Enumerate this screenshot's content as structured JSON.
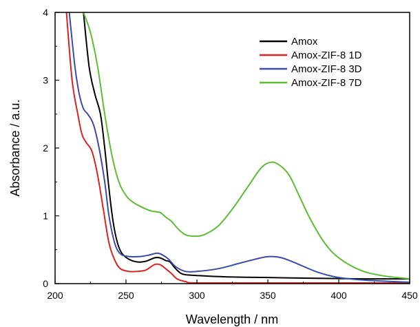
{
  "chart_data": {
    "type": "line",
    "title": "",
    "xlabel": "Wavelength / nm",
    "ylabel": "Absorbance / a.u.",
    "xlim": [
      200,
      450
    ],
    "ylim": [
      0,
      4
    ],
    "x_ticks": [
      "200",
      "250",
      "300",
      "350",
      "400",
      "450"
    ],
    "y_ticks": [
      "0",
      "1",
      "2",
      "3",
      "4"
    ],
    "grid": false,
    "legend_position": "top-right",
    "series": [
      {
        "name": "Amox",
        "color": "#000000",
        "points": [
          [
            220,
            4.0
          ],
          [
            224,
            3.2
          ],
          [
            228,
            2.8
          ],
          [
            232,
            2.5
          ],
          [
            235,
            2.0
          ],
          [
            238,
            1.4
          ],
          [
            241,
            0.9
          ],
          [
            244,
            0.6
          ],
          [
            247,
            0.45
          ],
          [
            252,
            0.36
          ],
          [
            258,
            0.32
          ],
          [
            264,
            0.33
          ],
          [
            270,
            0.38
          ],
          [
            274,
            0.38
          ],
          [
            278,
            0.34
          ],
          [
            281,
            0.32
          ],
          [
            285,
            0.22
          ],
          [
            290,
            0.14
          ],
          [
            300,
            0.12
          ],
          [
            320,
            0.1
          ],
          [
            350,
            0.09
          ],
          [
            380,
            0.08
          ],
          [
            420,
            0.07
          ],
          [
            450,
            0.07
          ]
        ]
      },
      {
        "name": "Amox-ZIF-8 1D",
        "color": "#e02020",
        "points": [
          [
            208,
            4.0
          ],
          [
            212,
            3.0
          ],
          [
            216,
            2.5
          ],
          [
            219,
            2.2
          ],
          [
            222,
            2.08
          ],
          [
            226,
            1.95
          ],
          [
            230,
            1.6
          ],
          [
            234,
            1.1
          ],
          [
            238,
            0.6
          ],
          [
            242,
            0.35
          ],
          [
            246,
            0.22
          ],
          [
            252,
            0.18
          ],
          [
            258,
            0.18
          ],
          [
            264,
            0.2
          ],
          [
            270,
            0.28
          ],
          [
            274,
            0.28
          ],
          [
            278,
            0.22
          ],
          [
            282,
            0.15
          ],
          [
            286,
            0.07
          ],
          [
            292,
            0.03
          ],
          [
            300,
            0.01
          ],
          [
            350,
            0.01
          ],
          [
            450,
            0.01
          ]
        ]
      },
      {
        "name": "Amox-ZIF-8 3D",
        "color": "#3a4aa8",
        "points": [
          [
            210,
            4.0
          ],
          [
            214,
            3.2
          ],
          [
            217,
            2.8
          ],
          [
            220,
            2.58
          ],
          [
            223,
            2.5
          ],
          [
            227,
            2.35
          ],
          [
            231,
            2.0
          ],
          [
            235,
            1.5
          ],
          [
            238,
            1.0
          ],
          [
            242,
            0.6
          ],
          [
            246,
            0.44
          ],
          [
            252,
            0.4
          ],
          [
            260,
            0.4
          ],
          [
            266,
            0.42
          ],
          [
            272,
            0.45
          ],
          [
            276,
            0.42
          ],
          [
            280,
            0.36
          ],
          [
            285,
            0.25
          ],
          [
            292,
            0.18
          ],
          [
            300,
            0.18
          ],
          [
            315,
            0.22
          ],
          [
            330,
            0.3
          ],
          [
            345,
            0.38
          ],
          [
            352,
            0.4
          ],
          [
            360,
            0.38
          ],
          [
            370,
            0.3
          ],
          [
            385,
            0.17
          ],
          [
            400,
            0.09
          ],
          [
            420,
            0.05
          ],
          [
            450,
            0.02
          ]
        ]
      },
      {
        "name": "Amox-ZIF-8 7D",
        "color": "#5bbd32",
        "points": [
          [
            220,
            4.0
          ],
          [
            225,
            3.7
          ],
          [
            230,
            3.2
          ],
          [
            235,
            2.5
          ],
          [
            240,
            1.9
          ],
          [
            245,
            1.5
          ],
          [
            250,
            1.3
          ],
          [
            255,
            1.2
          ],
          [
            262,
            1.12
          ],
          [
            268,
            1.07
          ],
          [
            274,
            1.05
          ],
          [
            278,
            0.98
          ],
          [
            282,
            0.92
          ],
          [
            287,
            0.8
          ],
          [
            292,
            0.72
          ],
          [
            298,
            0.7
          ],
          [
            305,
            0.72
          ],
          [
            315,
            0.85
          ],
          [
            325,
            1.1
          ],
          [
            335,
            1.4
          ],
          [
            345,
            1.7
          ],
          [
            352,
            1.79
          ],
          [
            358,
            1.75
          ],
          [
            365,
            1.6
          ],
          [
            372,
            1.3
          ],
          [
            380,
            0.95
          ],
          [
            390,
            0.6
          ],
          [
            400,
            0.38
          ],
          [
            415,
            0.2
          ],
          [
            430,
            0.12
          ],
          [
            450,
            0.07
          ]
        ]
      }
    ]
  }
}
